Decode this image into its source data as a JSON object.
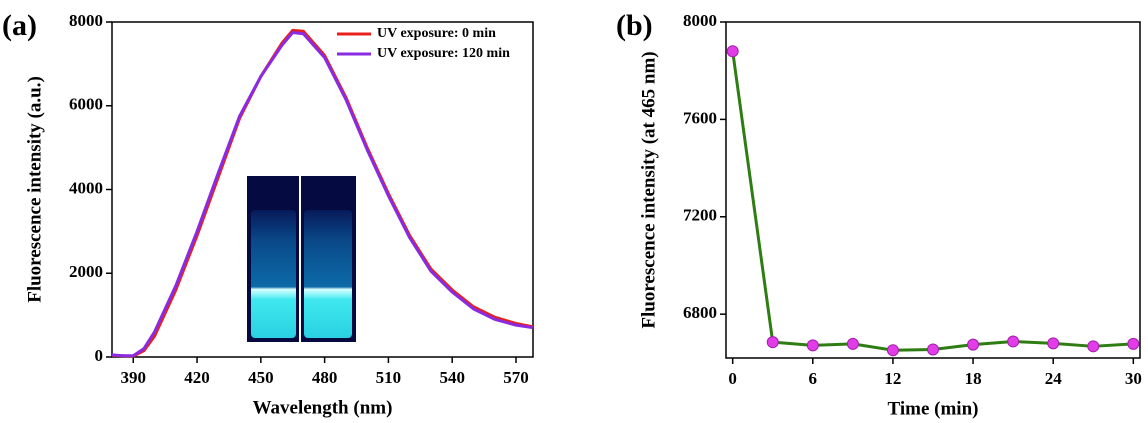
{
  "chart_data": [
    {
      "type": "line",
      "label": "(a)",
      "x_label": "Wavelength (nm)",
      "y_label": "Fluorescence intensity (a.u.)",
      "x": [
        380,
        385,
        390,
        395,
        400,
        410,
        420,
        430,
        440,
        450,
        460,
        465,
        470,
        480,
        490,
        500,
        510,
        520,
        530,
        540,
        550,
        560,
        570,
        578
      ],
      "series": [
        {
          "name": "UV exposure: 0 min",
          "color": "#e8201c",
          "values": [
            40,
            30,
            20,
            150,
            500,
            1600,
            2900,
            4300,
            5700,
            6700,
            7500,
            7800,
            7780,
            7200,
            6200,
            5000,
            3900,
            2900,
            2100,
            1600,
            1200,
            950,
            800,
            720
          ]
        },
        {
          "name": "UV exposure: 120 min",
          "color": "#8a2be2",
          "values": [
            50,
            30,
            30,
            200,
            600,
            1700,
            3000,
            4400,
            5750,
            6700,
            7450,
            7750,
            7720,
            7150,
            6150,
            4950,
            3850,
            2850,
            2050,
            1550,
            1150,
            900,
            760,
            700
          ]
        }
      ],
      "xlim": [
        380,
        578
      ],
      "xticks": [
        390,
        420,
        450,
        480,
        510,
        540,
        570
      ],
      "ylim": [
        0,
        8000
      ],
      "yticks": [
        0,
        2000,
        4000,
        6000,
        8000
      ],
      "legend": "upper-right"
    },
    {
      "type": "line-markers",
      "label": "(b)",
      "x_label": "Time (min)",
      "y_label": "Fluorescence intensity (at 465 nm)",
      "x": [
        0,
        3,
        6,
        9,
        12,
        15,
        18,
        21,
        24,
        27,
        30
      ],
      "series": [
        {
          "color": "#2e7d12",
          "marker_color": "#e23ce8",
          "values": [
            7880,
            6685,
            6672,
            6678,
            6652,
            6655,
            6675,
            6688,
            6680,
            6668,
            6678
          ]
        }
      ],
      "xlim": [
        -0.5,
        30.5
      ],
      "xticks": [
        0,
        6,
        12,
        18,
        24,
        30
      ],
      "ylim": [
        6620,
        8000
      ],
      "yticks": [
        6800,
        7200,
        7600,
        8000
      ]
    }
  ]
}
